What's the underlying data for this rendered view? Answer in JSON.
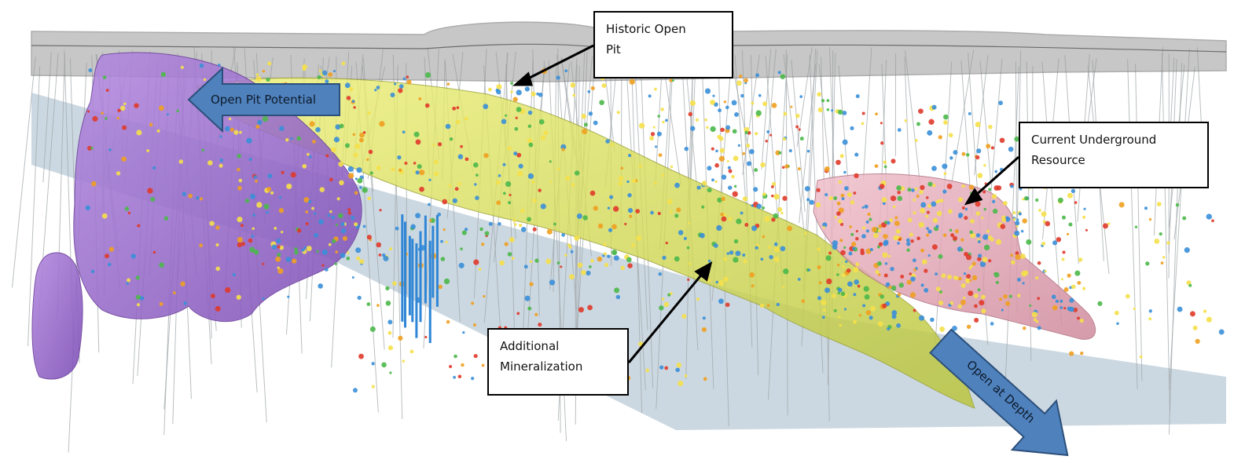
{
  "labels": {
    "historic_open_pit": [
      "Historic Open",
      "Pit"
    ],
    "open_pit_potential": "Open Pit Potential",
    "current_underground": [
      "Current Underground",
      "Resource"
    ],
    "additional_mineralization": [
      "Additional",
      "Mineralization"
    ],
    "open_at_depth": "Open at Depth"
  },
  "colors": {
    "topo_surface": "#8a8a8a",
    "open_pit_potential_body": "#9b6fd0",
    "mineralization_body": "#d9e05a",
    "underground_resource_body": "#e6a9b8",
    "depth_plane": "#b8c7d4",
    "arrow_fill": "#4f81bd",
    "arrow_stroke": "#2b4f7a"
  }
}
